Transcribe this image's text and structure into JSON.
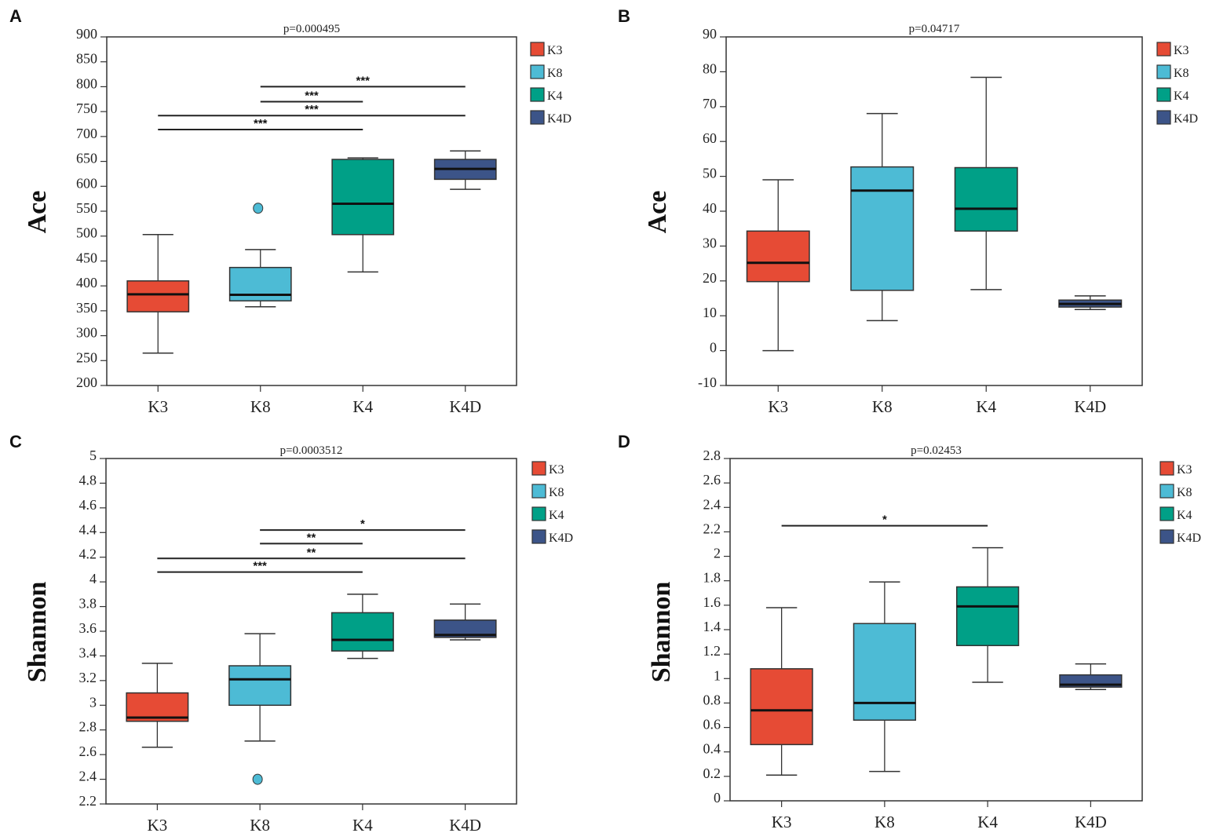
{
  "chart_data": [
    {
      "type": "box",
      "panel_label": "A",
      "title": "p=0.000495",
      "ylabel": "Ace",
      "ylim": [
        200,
        900
      ],
      "yticks": [
        200,
        250,
        300,
        350,
        400,
        450,
        500,
        550,
        600,
        650,
        700,
        750,
        800,
        850,
        900
      ],
      "categories": [
        "K3",
        "K8",
        "K4",
        "K4D"
      ],
      "boxes": [
        {
          "min": 265,
          "q1": 348,
          "median": 383,
          "q3": 410,
          "max": 503,
          "outliers": []
        },
        {
          "min": 358,
          "q1": 370,
          "median": 382,
          "q3": 437,
          "max": 473,
          "outliers": [
            556
          ]
        },
        {
          "min": 428,
          "q1": 503,
          "median": 565,
          "q3": 654,
          "max": 657,
          "outliers": []
        },
        {
          "min": 594,
          "q1": 614,
          "median": 635,
          "q3": 654,
          "max": 671,
          "outliers": []
        }
      ],
      "significance": [
        {
          "from": "K3",
          "to": "K4",
          "y": 714,
          "label": "***"
        },
        {
          "from": "K3",
          "to": "K4D",
          "y": 742,
          "label": "***"
        },
        {
          "from": "K8",
          "to": "K4",
          "y": 770,
          "label": "***"
        },
        {
          "from": "K8",
          "to": "K4D",
          "y": 800,
          "label": "***"
        }
      ]
    },
    {
      "type": "box",
      "panel_label": "B",
      "title": "p=0.04717",
      "ylabel": "Ace",
      "ylim": [
        -10,
        90
      ],
      "yticks": [
        -10,
        0,
        10,
        20,
        30,
        40,
        50,
        60,
        70,
        80,
        90
      ],
      "categories": [
        "K3",
        "K8",
        "K4",
        "K4D"
      ],
      "boxes": [
        {
          "min": 0,
          "q1": 19.8,
          "median": 25.2,
          "q3": 34.3,
          "max": 49,
          "outliers": []
        },
        {
          "min": 8.6,
          "q1": 17.3,
          "median": 45.9,
          "q3": 52.7,
          "max": 68,
          "outliers": []
        },
        {
          "min": 17.5,
          "q1": 34.3,
          "median": 40.7,
          "q3": 52.5,
          "max": 78.4,
          "outliers": []
        },
        {
          "min": 11.8,
          "q1": 12.5,
          "median": 13.4,
          "q3": 14.5,
          "max": 15.7,
          "outliers": []
        }
      ],
      "significance": []
    },
    {
      "type": "box",
      "panel_label": "C",
      "title": "p=0.0003512",
      "ylabel": "Shannon",
      "ylim": [
        2.2,
        5
      ],
      "yticks": [
        2.2,
        2.4,
        2.6,
        2.8,
        3,
        3.2,
        3.4,
        3.6,
        3.8,
        4,
        4.2,
        4.4,
        4.6,
        4.8,
        5
      ],
      "categories": [
        "K3",
        "K8",
        "K4",
        "K4D"
      ],
      "boxes": [
        {
          "min": 2.66,
          "q1": 2.87,
          "median": 2.9,
          "q3": 3.1,
          "max": 3.34,
          "outliers": []
        },
        {
          "min": 2.71,
          "q1": 3.0,
          "median": 3.21,
          "q3": 3.32,
          "max": 3.58,
          "outliers": [
            2.4
          ]
        },
        {
          "min": 3.38,
          "q1": 3.44,
          "median": 3.53,
          "q3": 3.75,
          "max": 3.9,
          "outliers": []
        },
        {
          "min": 3.53,
          "q1": 3.55,
          "median": 3.57,
          "q3": 3.69,
          "max": 3.82,
          "outliers": []
        }
      ],
      "significance": [
        {
          "from": "K3",
          "to": "K4",
          "y": 4.08,
          "label": "***"
        },
        {
          "from": "K3",
          "to": "K4D",
          "y": 4.19,
          "label": "**"
        },
        {
          "from": "K8",
          "to": "K4",
          "y": 4.31,
          "label": "**"
        },
        {
          "from": "K8",
          "to": "K4D",
          "y": 4.42,
          "label": "*"
        }
      ]
    },
    {
      "type": "box",
      "panel_label": "D",
      "title": "p=0.02453",
      "ylabel": "Shannon",
      "ylim": [
        0,
        2.8
      ],
      "yticks": [
        0,
        0.2,
        0.4,
        0.6,
        0.8,
        1,
        1.2,
        1.4,
        1.6,
        1.8,
        2,
        2.2,
        2.4,
        2.6,
        2.8
      ],
      "categories": [
        "K3",
        "K8",
        "K4",
        "K4D"
      ],
      "boxes": [
        {
          "min": 0.21,
          "q1": 0.46,
          "median": 0.74,
          "q3": 1.08,
          "max": 1.58,
          "outliers": []
        },
        {
          "min": 0.24,
          "q1": 0.66,
          "median": 0.8,
          "q3": 1.45,
          "max": 1.79,
          "outliers": []
        },
        {
          "min": 0.97,
          "q1": 1.27,
          "median": 1.59,
          "q3": 1.75,
          "max": 2.07,
          "outliers": []
        },
        {
          "min": 0.91,
          "q1": 0.93,
          "median": 0.95,
          "q3": 1.03,
          "max": 1.12,
          "outliers": []
        }
      ],
      "significance": [
        {
          "from": "K3",
          "to": "K4",
          "y": 2.25,
          "label": "*"
        }
      ]
    }
  ],
  "legend": [
    {
      "label": "K3",
      "color": "#e64b35"
    },
    {
      "label": "K8",
      "color": "#4dbbd5"
    },
    {
      "label": "K4",
      "color": "#00a087"
    },
    {
      "label": "K4D",
      "color": "#3c5488"
    }
  ]
}
